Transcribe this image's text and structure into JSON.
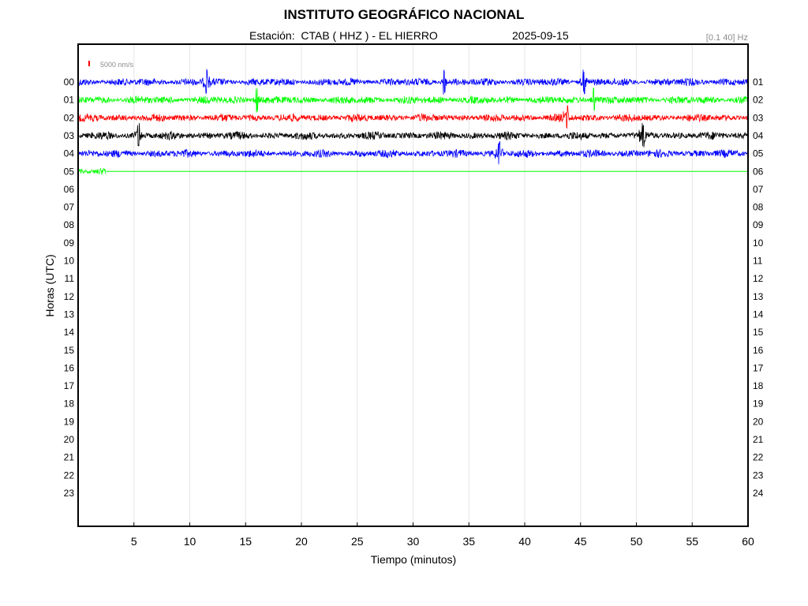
{
  "header": {
    "title": "INSTITUTO GEOGRÁFICO NACIONAL",
    "station": "Estación:  CTAB ( HHZ ) - EL HIERRO",
    "date": "2025-09-15",
    "filter": "[0.1 40] Hz"
  },
  "colors": {
    "blue": "#0000ff",
    "green": "#00ff00",
    "red": "#ff0000",
    "black": "#000000",
    "grid": "#e6e6e6",
    "scale_bar": "#ff0000"
  },
  "chart_data": {
    "type": "line",
    "subtype": "helicorder",
    "xlabel": "Tiempo (minutos)",
    "ylabel": "Horas (UTC)",
    "xlim": [
      0,
      60
    ],
    "xticks": [
      5,
      10,
      15,
      20,
      25,
      30,
      35,
      40,
      45,
      50,
      55,
      60
    ],
    "left_labels": [
      "00",
      "01",
      "02",
      "03",
      "04",
      "05",
      "06",
      "07",
      "08",
      "09",
      "10",
      "11",
      "12",
      "13",
      "14",
      "15",
      "16",
      "17",
      "18",
      "19",
      "20",
      "21",
      "22",
      "23"
    ],
    "right_labels": [
      "01",
      "02",
      "03",
      "04",
      "05",
      "06",
      "07",
      "08",
      "09",
      "10",
      "11",
      "12",
      "13",
      "14",
      "15",
      "16",
      "17",
      "18",
      "19",
      "20",
      "21",
      "22",
      "23",
      "24"
    ],
    "scale_label": "5000 nm/s",
    "grid": "vertical",
    "traces": [
      {
        "hour": "00",
        "color": "blue",
        "start_min": 0,
        "end_min": 60,
        "amplitude": "moderate",
        "spikes_at_min": [
          11.5,
          32.8,
          45.3
        ]
      },
      {
        "hour": "01",
        "color": "green",
        "start_min": 0,
        "end_min": 60,
        "amplitude": "moderate",
        "spikes_at_min": [
          16.0,
          46.2
        ]
      },
      {
        "hour": "02",
        "color": "red",
        "start_min": 0,
        "end_min": 60,
        "amplitude": "moderate",
        "spikes_at_min": [
          43.8
        ]
      },
      {
        "hour": "03",
        "color": "black",
        "start_min": 0,
        "end_min": 60,
        "amplitude": "moderate",
        "spikes_at_min": [
          5.4,
          50.6
        ]
      },
      {
        "hour": "04",
        "color": "blue",
        "start_min": 0,
        "end_min": 60,
        "amplitude": "moderate",
        "spikes_at_min": [
          37.7
        ]
      },
      {
        "hour": "05",
        "color": "green",
        "start_min": 0,
        "end_min": 2.5,
        "amplitude": "moderate",
        "flat_until_min": 60
      }
    ]
  }
}
